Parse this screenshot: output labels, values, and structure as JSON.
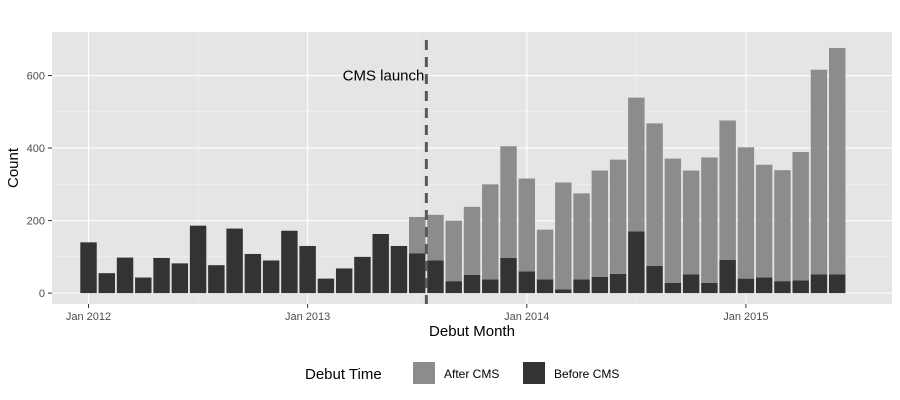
{
  "chart_data": {
    "type": "bar",
    "stacked": true,
    "x_axis": {
      "label": "Debut Month",
      "ticks": [
        "Jan 2012",
        "Jan 2013",
        "Jan 2014",
        "Jan 2015"
      ],
      "range": [
        "2011-11",
        "2015-09"
      ]
    },
    "y_axis": {
      "label": "Count",
      "ticks": [
        0,
        200,
        400,
        600
      ],
      "range": [
        -30,
        720
      ]
    },
    "grid": true,
    "annotation": {
      "text": "CMS launch",
      "x": "2013-07",
      "style": "dashed vertical line"
    },
    "legend": {
      "title": "Debut Time",
      "position": "bottom",
      "entries": [
        "After CMS",
        "Before CMS"
      ]
    },
    "colors": {
      "panel": "#e5e5e5",
      "grid_major": "#ffffff",
      "grid_minor": "#f2f2f2",
      "after": "#8c8c8c",
      "before": "#333333",
      "vline": "#595959"
    },
    "months": [
      "2012-01",
      "2012-02",
      "2012-03",
      "2012-04",
      "2012-05",
      "2012-06",
      "2012-07",
      "2012-08",
      "2012-09",
      "2012-10",
      "2012-11",
      "2012-12",
      "2013-01",
      "2013-02",
      "2013-03",
      "2013-04",
      "2013-05",
      "2013-06",
      "2013-07",
      "2013-08",
      "2013-09",
      "2013-10",
      "2013-11",
      "2013-12",
      "2014-01",
      "2014-02",
      "2014-03",
      "2014-04",
      "2014-05",
      "2014-06",
      "2014-07",
      "2014-08",
      "2014-09",
      "2014-10",
      "2014-11",
      "2014-12",
      "2015-01",
      "2015-02",
      "2015-03",
      "2015-04",
      "2015-05",
      "2015-06"
    ],
    "series": [
      {
        "name": "Before CMS",
        "values": [
          140,
          55,
          98,
          43,
          97,
          82,
          186,
          77,
          178,
          108,
          90,
          172,
          130,
          40,
          68,
          100,
          163,
          130,
          110,
          90,
          33,
          50,
          38,
          97,
          60,
          38,
          10,
          38,
          45,
          53,
          170,
          75,
          28,
          52,
          28,
          92,
          40,
          43,
          33,
          35,
          52,
          52
        ]
      },
      {
        "name": "After CMS",
        "values": [
          0,
          0,
          0,
          0,
          0,
          0,
          0,
          0,
          0,
          0,
          0,
          0,
          0,
          0,
          0,
          0,
          0,
          0,
          100,
          126,
          167,
          188,
          262,
          308,
          256,
          137,
          295,
          237,
          293,
          315,
          369,
          393,
          343,
          286,
          346,
          384,
          362,
          311,
          306,
          354,
          564,
          624
        ]
      }
    ]
  }
}
